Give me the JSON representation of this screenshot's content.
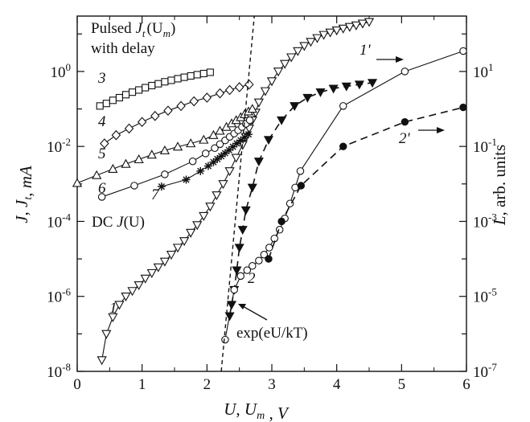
{
  "chart_data": {
    "type": "scatter",
    "x_axis": {
      "label": "U, Uₘ , V",
      "range": [
        0,
        6
      ],
      "ticks": [
        0,
        1,
        2,
        3,
        4,
        5,
        6
      ],
      "tick_labels": [
        "0",
        "1",
        "2",
        "3",
        "4",
        "5",
        "6"
      ]
    },
    "y_left_axis": {
      "label": "J, Jₜ, mA",
      "scale": "log",
      "range": [
        1e-08,
        30
      ],
      "ticks": [
        1e-08,
        1e-06,
        0.0001,
        0.01,
        1
      ],
      "tick_base": "10",
      "tick_exponents": [
        "-8",
        "-6",
        "-4",
        "-2",
        "0"
      ]
    },
    "y_right_axis": {
      "label": "L, arb. units",
      "scale": "log",
      "range": [
        1e-07,
        300
      ],
      "ticks": [
        1e-07,
        1e-05,
        0.001,
        0.1,
        10
      ],
      "tick_base": "10",
      "tick_exponents": [
        "-7",
        "-5",
        "-3",
        "-1",
        "1"
      ]
    },
    "annotations": {
      "pulsed_line1_prefix": "Pulsed ",
      "pulsed_line1_func": "J",
      "pulsed_line1_sub": "t",
      "pulsed_line1_arg": "(U",
      "pulsed_line1_argsub": "m",
      "pulsed_line1_close": ")",
      "pulsed_line2": "with delay",
      "dc_prefix": "DC ",
      "dc_func": "J",
      "dc_arg": "(U)",
      "exp_label": "exp(eU/kT)"
    },
    "series": [
      {
        "name": "1",
        "marker": "triangle-down-open",
        "line": "solid",
        "axis": "left",
        "x": [
          0.38,
          0.45,
          0.55,
          0.65,
          0.75,
          0.85,
          0.95,
          1.05,
          1.15,
          1.25,
          1.35,
          1.45,
          1.55,
          1.65,
          1.75,
          1.85,
          1.95,
          2.05,
          2.15,
          2.25,
          2.35,
          2.45,
          2.55,
          2.6,
          2.65,
          2.7,
          2.75,
          2.8,
          2.9,
          3.0,
          3.1,
          3.2,
          3.3,
          3.4,
          3.5,
          3.6,
          3.7,
          3.8,
          3.9,
          4.0,
          4.1,
          4.2,
          4.3,
          4.4,
          4.5
        ],
        "y": [
          2e-08,
          1e-07,
          2.8e-07,
          6e-07,
          1e-06,
          1.4e-06,
          2e-06,
          3e-06,
          4.2e-06,
          6e-06,
          8.5e-06,
          1.3e-05,
          2e-05,
          3e-05,
          5e-05,
          8e-05,
          0.00014,
          0.00025,
          0.0005,
          0.001,
          0.0022,
          0.005,
          0.011,
          0.018,
          0.03,
          0.05,
          0.08,
          0.15,
          0.3,
          0.55,
          1.0,
          1.6,
          2.4,
          3.5,
          4.8,
          6.2,
          7.8,
          9.5,
          11,
          12.5,
          14,
          15.5,
          17,
          19,
          21
        ]
      },
      {
        "name": "1'",
        "marker": "triangle-down-filled",
        "line": "dashed",
        "axis": "right",
        "x": [
          2.35,
          2.38,
          2.42,
          2.46,
          2.5,
          2.55,
          2.6,
          2.7,
          2.8,
          2.95,
          3.15,
          3.35,
          3.55,
          3.75,
          3.95,
          4.15,
          4.35,
          4.55
        ],
        "y": [
          3e-06,
          6e-06,
          1.5e-05,
          5e-05,
          0.0002,
          0.0006,
          0.002,
          0.008,
          0.04,
          0.15,
          0.5,
          1.2,
          2.0,
          2.8,
          3.5,
          4.0,
          4.5,
          5.0
        ]
      },
      {
        "name": "2",
        "marker": "circle-open",
        "line": "solid",
        "axis": "left",
        "x": [
          2.28,
          2.42,
          2.52,
          2.62,
          2.7,
          2.8,
          2.88,
          2.96,
          3.04,
          3.12,
          3.2,
          3.28,
          3.36,
          3.44,
          4.1,
          5.05,
          5.95
        ],
        "y": [
          7e-08,
          1.5e-06,
          3.5e-06,
          5e-06,
          6.5e-06,
          9e-06,
          1.3e-05,
          2e-05,
          3.5e-05,
          6e-05,
          0.00012,
          0.0003,
          0.0008,
          0.0022,
          0.12,
          1.0,
          3.5
        ]
      },
      {
        "name": "2'",
        "marker": "circle-filled",
        "line": "dashed",
        "axis": "right",
        "x": [
          2.95,
          3.15,
          3.45,
          4.1,
          5.05,
          5.95
        ],
        "y": [
          0.0001,
          0.001,
          0.009,
          0.1,
          0.45,
          1.1
        ]
      },
      {
        "name": "3",
        "marker": "square-open",
        "line": "solid",
        "axis": "left",
        "x": [
          0.35,
          0.45,
          0.55,
          0.65,
          0.75,
          0.85,
          0.95,
          1.05,
          1.15,
          1.25,
          1.35,
          1.45,
          1.55,
          1.65,
          1.75,
          1.85,
          1.95,
          2.05
        ],
        "y": [
          0.12,
          0.14,
          0.17,
          0.2,
          0.24,
          0.28,
          0.32,
          0.37,
          0.42,
          0.47,
          0.53,
          0.58,
          0.64,
          0.7,
          0.76,
          0.82,
          0.88,
          0.95
        ]
      },
      {
        "name": "4",
        "marker": "diamond-open",
        "line": "solid",
        "axis": "left",
        "x": [
          0.42,
          0.6,
          0.8,
          1.0,
          1.2,
          1.4,
          1.6,
          1.8,
          2.0,
          2.2,
          2.35,
          2.5,
          2.65
        ],
        "y": [
          0.012,
          0.02,
          0.03,
          0.045,
          0.065,
          0.09,
          0.12,
          0.16,
          0.2,
          0.26,
          0.32,
          0.38,
          0.45
        ]
      },
      {
        "name": "5",
        "marker": "triangle-up-open",
        "line": "solid",
        "axis": "left",
        "x": [
          0.0,
          0.3,
          0.55,
          0.75,
          0.95,
          1.15,
          1.35,
          1.55,
          1.75,
          1.95,
          2.1,
          2.2,
          2.3,
          2.38,
          2.45,
          2.52,
          2.58,
          2.64,
          2.7
        ],
        "y": [
          0.00105,
          0.0017,
          0.0025,
          0.0034,
          0.0045,
          0.006,
          0.0078,
          0.0098,
          0.012,
          0.015,
          0.02,
          0.026,
          0.033,
          0.041,
          0.05,
          0.06,
          0.072,
          0.085,
          0.1
        ]
      },
      {
        "name": "6",
        "marker": "circle-open",
        "line": "solid",
        "axis": "left",
        "x": [
          0.38,
          0.88,
          1.35,
          1.78,
          1.98,
          2.12,
          2.2,
          2.28,
          2.35,
          2.42,
          2.48,
          2.54,
          2.6,
          2.66
        ],
        "y": [
          0.00045,
          0.0009,
          0.0018,
          0.004,
          0.0065,
          0.009,
          0.0115,
          0.0145,
          0.018,
          0.022,
          0.027,
          0.033,
          0.04,
          0.05
        ]
      },
      {
        "name": "7",
        "marker": "asterisk",
        "line": "solid",
        "axis": "left",
        "x": [
          1.3,
          1.68,
          1.9,
          2.02,
          2.1,
          2.16,
          2.22,
          2.28,
          2.34,
          2.4,
          2.46,
          2.52,
          2.58,
          2.64
        ],
        "y": [
          0.00085,
          0.0013,
          0.0022,
          0.003,
          0.0038,
          0.0046,
          0.0055,
          0.0066,
          0.008,
          0.0098,
          0.012,
          0.0145,
          0.0175,
          0.021
        ]
      },
      {
        "name": "exp(eU/kT)",
        "marker": "none",
        "line": "short-dashed",
        "axis": "left",
        "x": [
          2.22,
          2.73
        ],
        "y": [
          1e-08,
          30
        ]
      }
    ]
  }
}
